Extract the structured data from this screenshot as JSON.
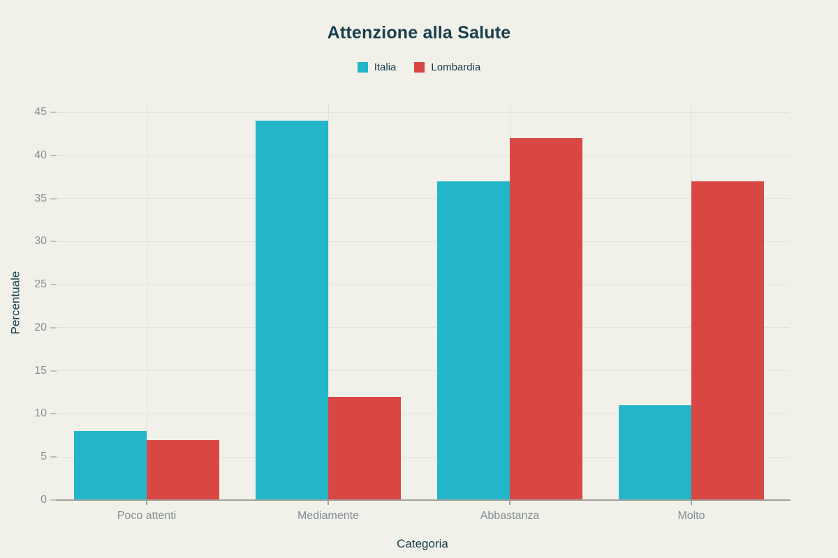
{
  "chart_data": {
    "type": "bar",
    "title": "Attenzione alla Salute",
    "categories": [
      "Poco attenti",
      "Mediamente",
      "Abbastanza",
      "Molto"
    ],
    "series": [
      {
        "name": "Italia",
        "color": "#23b6c9",
        "values": [
          8,
          44,
          37,
          11
        ]
      },
      {
        "name": "Lombardia",
        "color": "#d94745",
        "values": [
          7,
          12,
          42,
          37
        ]
      }
    ],
    "xlabel": "Categoria",
    "ylabel": "Percentuale",
    "ylim": [
      0,
      45
    ],
    "ytick_step": 5,
    "grid": true,
    "legend_position": "top-center",
    "bar_mode": "grouped"
  },
  "colors": {
    "background": "#f1f0e9",
    "title_text": "#17404e",
    "tick_text": "#818d93",
    "gridline": "#e3e3db",
    "axis_line": "#a1a19a",
    "series_italia": "#23b6c9",
    "series_lombardia": "#d94745"
  }
}
